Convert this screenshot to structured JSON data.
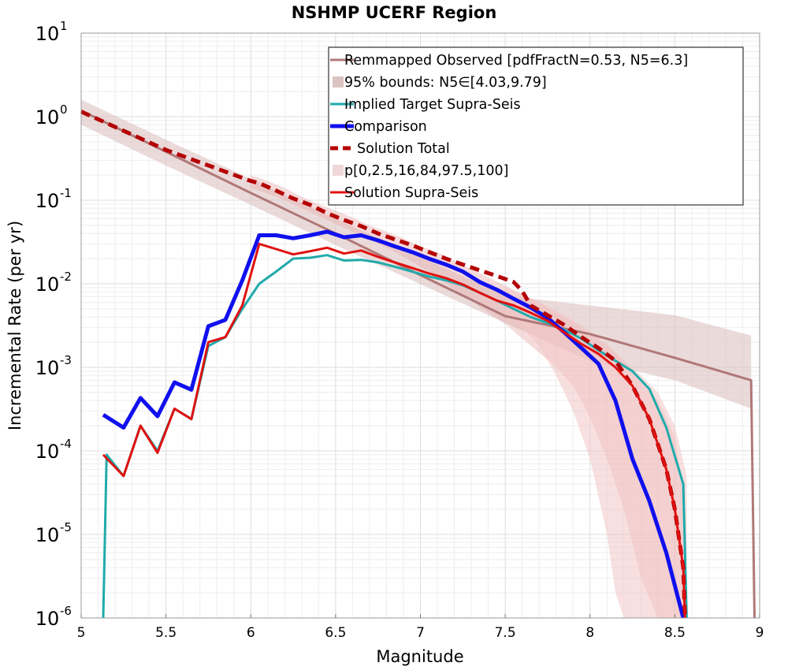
{
  "chart_data": {
    "type": "line",
    "title": "NSHMP UCERF Region",
    "xlabel": "Magnitude",
    "ylabel": "Incremental Rate (per yr)",
    "xlim": [
      5,
      9
    ],
    "ylim": [
      1e-06,
      10
    ],
    "y_scale": "log",
    "grid": true,
    "legend_position": "top-right",
    "x_ticks": [
      "5",
      "5.5",
      "6",
      "6.5",
      "7",
      "7.5",
      "8",
      "8.5",
      "9"
    ],
    "y_ticks": [
      {
        "base": "10",
        "exp": "1"
      },
      {
        "base": "10",
        "exp": "0"
      },
      {
        "base": "10",
        "exp": "-1"
      },
      {
        "base": "10",
        "exp": "-2"
      },
      {
        "base": "10",
        "exp": "-3"
      },
      {
        "base": "10",
        "exp": "-4"
      },
      {
        "base": "10",
        "exp": "-5"
      },
      {
        "base": "10",
        "exp": "-6"
      }
    ],
    "bands": [
      {
        "name": "95% bounds: N5∈[4.03,9.79]",
        "color": "#ddc2c2",
        "opacity": 0.6,
        "x": [
          5.0,
          5.5,
          6.0,
          6.5,
          7.0,
          7.5,
          8.0,
          8.5,
          8.95
        ],
        "upper": [
          1.6,
          0.53,
          0.18,
          0.06,
          0.021,
          0.0072,
          0.0055,
          0.0042,
          0.0024
        ],
        "lower": [
          0.8,
          0.26,
          0.088,
          0.029,
          0.0099,
          0.0034,
          0.0012,
          0.0007,
          0.00032
        ]
      },
      {
        "name": "p[0,2.5,16,84,97.5,100]",
        "color": "#e9b0b0",
        "opacity": 0.45,
        "x": [
          6.0,
          6.1,
          6.2,
          6.3,
          6.4,
          6.5,
          6.6,
          6.7,
          6.8,
          6.9,
          7.0,
          7.1,
          7.2,
          7.3,
          7.4,
          7.5,
          7.6,
          7.7,
          7.8,
          7.9,
          8.0,
          8.1,
          8.2,
          8.3,
          8.4,
          8.5,
          8.55
        ],
        "upper": [
          0.2,
          0.17,
          0.14,
          0.11,
          0.09,
          0.075,
          0.062,
          0.05,
          0.042,
          0.035,
          0.028,
          0.024,
          0.019,
          0.015,
          0.012,
          0.0095,
          0.0075,
          0.006,
          0.0045,
          0.0035,
          0.0025,
          0.0018,
          0.0012,
          0.0007,
          0.0004,
          0.00015,
          3e-05
        ],
        "lower": [
          0.14,
          0.12,
          0.1,
          0.08,
          0.065,
          0.052,
          0.042,
          0.034,
          0.027,
          0.021,
          0.016,
          0.012,
          0.0085,
          0.0062,
          0.0045,
          0.0033,
          0.0022,
          0.0015,
          0.001,
          0.0006,
          0.00025,
          8e-05,
          2e-05,
          3e-06,
          1e-06,
          1e-06,
          1e-06
        ]
      },
      {
        "name": "p[0,2.5,16,84,97.5,100] outer",
        "color": "#f2c6c6",
        "opacity": 0.55,
        "x": [
          7.5,
          7.6,
          7.7,
          7.8,
          7.9,
          8.0,
          8.1,
          8.15,
          8.2,
          8.3,
          8.4,
          8.5,
          8.57
        ],
        "upper": [
          0.009,
          0.0075,
          0.006,
          0.0048,
          0.0037,
          0.0027,
          0.0019,
          0.0015,
          0.0012,
          0.0008,
          0.0005,
          0.0002,
          5e-05
        ],
        "lower": [
          0.0045,
          0.003,
          0.0018,
          0.0008,
          0.0003,
          8e-05,
          1e-05,
          2e-06,
          1e-06,
          1e-06,
          1e-06,
          1e-06,
          1e-06
        ]
      }
    ],
    "series": [
      {
        "name": "Remmapped Observed [pdfFractN=0.53, N5=6.3]",
        "color": "#b07878",
        "width": 3,
        "dash": "",
        "x": [
          5.0,
          5.5,
          6.0,
          6.5,
          7.0,
          7.5,
          8.0,
          8.5,
          8.95,
          8.97
        ],
        "y": [
          1.18,
          0.38,
          0.122,
          0.04,
          0.0127,
          0.0041,
          0.0025,
          0.0013,
          0.0007,
          1e-06
        ]
      },
      {
        "name": "Implied Target Supra-Seis",
        "color": "#20aaaa",
        "width": 3,
        "dash": "",
        "x": [
          5.13,
          5.15,
          5.25,
          5.35,
          5.45,
          5.55,
          5.65,
          5.75,
          5.85,
          5.95,
          6.05,
          6.15,
          6.25,
          6.35,
          6.45,
          6.55,
          6.65,
          6.75,
          6.85,
          6.95,
          7.05,
          7.15,
          7.25,
          7.35,
          7.45,
          7.55,
          7.65,
          7.75,
          7.85,
          7.95,
          8.05,
          8.15,
          8.25,
          8.35,
          8.45,
          8.55,
          8.57
        ],
        "y": [
          1e-06,
          9e-05,
          5e-05,
          0.0002,
          0.0001,
          0.00032,
          0.00024,
          0.0018,
          0.0023,
          0.005,
          0.01,
          0.014,
          0.02,
          0.0205,
          0.022,
          0.019,
          0.0193,
          0.018,
          0.016,
          0.014,
          0.0122,
          0.011,
          0.0096,
          0.0078,
          0.0063,
          0.005,
          0.004,
          0.0034,
          0.0028,
          0.0022,
          0.0016,
          0.0012,
          0.0009,
          0.00055,
          0.00019,
          4e-05,
          1e-06
        ]
      },
      {
        "name": "Comparison",
        "color": "#1010ee",
        "width": 5,
        "dash": "",
        "x": [
          5.13,
          5.25,
          5.35,
          5.45,
          5.55,
          5.65,
          5.75,
          5.85,
          5.95,
          6.05,
          6.15,
          6.25,
          6.35,
          6.45,
          6.55,
          6.65,
          6.75,
          6.85,
          6.95,
          7.05,
          7.15,
          7.25,
          7.35,
          7.45,
          7.55,
          7.65,
          7.75,
          7.85,
          7.95,
          8.05,
          8.15,
          8.25,
          8.35,
          8.45,
          8.55
        ],
        "y": [
          0.00027,
          0.00019,
          0.00043,
          0.00026,
          0.00066,
          0.00054,
          0.0031,
          0.0037,
          0.011,
          0.038,
          0.038,
          0.035,
          0.038,
          0.042,
          0.036,
          0.038,
          0.033,
          0.028,
          0.024,
          0.02,
          0.017,
          0.014,
          0.0105,
          0.0085,
          0.0066,
          0.0052,
          0.0039,
          0.0026,
          0.0017,
          0.0011,
          0.0004,
          8e-05,
          2.5e-05,
          6e-06,
          1e-06
        ]
      },
      {
        "name": "Solution Total",
        "color": "#b40000",
        "width": 5,
        "dash": "12,7",
        "x": [
          5.0,
          5.5,
          6.0,
          6.05,
          6.15,
          6.25,
          6.35,
          6.45,
          6.55,
          6.65,
          6.75,
          6.85,
          6.95,
          7.05,
          7.15,
          7.25,
          7.35,
          7.45,
          7.55,
          7.6,
          7.65,
          7.75,
          7.85,
          7.95,
          8.05,
          8.15,
          8.25,
          8.35,
          8.45,
          8.5,
          8.55,
          8.56
        ],
        "y": [
          1.15,
          0.4,
          0.17,
          0.16,
          0.13,
          0.105,
          0.088,
          0.07,
          0.058,
          0.049,
          0.04,
          0.034,
          0.029,
          0.024,
          0.02,
          0.017,
          0.0145,
          0.0124,
          0.0105,
          0.0082,
          0.0055,
          0.0042,
          0.0032,
          0.0023,
          0.0017,
          0.0012,
          0.0006,
          0.00024,
          6e-05,
          2e-05,
          4e-06,
          1e-06
        ]
      },
      {
        "name": "Solution Supra-Seis",
        "color": "#e01010",
        "width": 3,
        "dash": "",
        "x": [
          5.13,
          5.25,
          5.35,
          5.45,
          5.55,
          5.65,
          5.75,
          5.85,
          5.95,
          6.05,
          6.15,
          6.25,
          6.35,
          6.45,
          6.55,
          6.65,
          6.75,
          6.85,
          6.95,
          7.05,
          7.15,
          7.25,
          7.35,
          7.45,
          7.55,
          7.65,
          7.75,
          7.85,
          7.95,
          8.05,
          8.15,
          8.25,
          8.35,
          8.45,
          8.5,
          8.55,
          8.56
        ],
        "y": [
          9e-05,
          5e-05,
          0.0002,
          9.5e-05,
          0.00032,
          0.00024,
          0.002,
          0.0023,
          0.0055,
          0.03,
          0.026,
          0.0225,
          0.0245,
          0.027,
          0.023,
          0.025,
          0.021,
          0.018,
          0.0155,
          0.0133,
          0.0117,
          0.0098,
          0.0078,
          0.0063,
          0.0055,
          0.0045,
          0.0036,
          0.0026,
          0.0019,
          0.00145,
          0.001,
          0.0006,
          0.00024,
          6e-05,
          2e-05,
          4e-06,
          1e-06
        ]
      }
    ],
    "legend": [
      {
        "label": "Remmapped Observed [pdfFractN=0.53, N5=6.3]",
        "kind": "line",
        "color": "#b07878",
        "width": 3,
        "dash": ""
      },
      {
        "label": "95% bounds: N5∈[4.03,9.79]",
        "kind": "fill",
        "color": "#ddc2c2",
        "width": 0,
        "dash": ""
      },
      {
        "label": "Implied Target Supra-Seis",
        "kind": "line",
        "color": "#20aaaa",
        "width": 3,
        "dash": ""
      },
      {
        "label": "Comparison",
        "kind": "line",
        "color": "#1010ee",
        "width": 5,
        "dash": ""
      },
      {
        "label": "Solution Total",
        "kind": "line",
        "color": "#b40000",
        "width": 5,
        "dash": "10,6"
      },
      {
        "label": "p[0,2.5,16,84,97.5,100]",
        "kind": "fill",
        "color": "#f0d8d8",
        "width": 0,
        "dash": ""
      },
      {
        "label": "Solution Supra-Seis",
        "kind": "line",
        "color": "#e01010",
        "width": 3,
        "dash": ""
      }
    ]
  }
}
